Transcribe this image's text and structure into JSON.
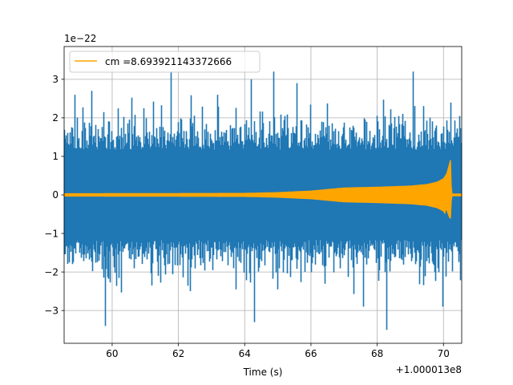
{
  "chart_data": {
    "type": "line",
    "title": "",
    "xlabel": "Time (s)",
    "ylabel": "",
    "x_offset_label": "+1.000013e8",
    "y_scale_label": "1e−22",
    "xlim": [
      58.55,
      70.55
    ],
    "ylim": [
      -3.85,
      3.85
    ],
    "xticks": [
      60,
      62,
      64,
      66,
      68,
      70
    ],
    "xtick_labels": [
      "60",
      "62",
      "64",
      "66",
      "68",
      "70"
    ],
    "yticks": [
      -3,
      -2,
      -1,
      0,
      1,
      2,
      3
    ],
    "ytick_labels": [
      "−3",
      "−2",
      "−1",
      "0",
      "1",
      "2",
      "3"
    ],
    "grid": true,
    "legend": {
      "location": "upper left",
      "entries": [
        "cm =8.693921143372666"
      ]
    },
    "series": [
      {
        "name": "",
        "color": "#1f77b4",
        "description_values": {
          "kind": "noise",
          "typical_band": [
            -1.3,
            1.3
          ],
          "peak_max": 3.3,
          "peak_min": -3.5,
          "peaks": [
            {
              "x": 58.9,
              "y": 2.6
            },
            {
              "x": 59.4,
              "y": 2.7
            },
            {
              "x": 59.8,
              "y": -3.4
            },
            {
              "x": 61.8,
              "y": 3.2
            },
            {
              "x": 63.2,
              "y": 2.6
            },
            {
              "x": 64.2,
              "y": 3.0
            },
            {
              "x": 64.3,
              "y": -3.3
            },
            {
              "x": 64.9,
              "y": 3.2
            },
            {
              "x": 65.6,
              "y": 2.9
            },
            {
              "x": 67.6,
              "y": -2.9
            },
            {
              "x": 68.3,
              "y": -3.5
            },
            {
              "x": 69.1,
              "y": 3.2
            },
            {
              "x": 70.0,
              "y": -2.9
            }
          ]
        }
      },
      {
        "name": "cm =8.693921143372666",
        "color": "#ffa500",
        "description_values": {
          "kind": "chirp",
          "envelope": [
            {
              "x": 58.55,
              "y": 0.03
            },
            {
              "x": 64.0,
              "y": 0.04
            },
            {
              "x": 65.0,
              "y": 0.06
            },
            {
              "x": 65.5,
              "y": 0.08
            },
            {
              "x": 66.0,
              "y": 0.1
            },
            {
              "x": 66.5,
              "y": 0.14
            },
            {
              "x": 67.0,
              "y": 0.18
            },
            {
              "x": 68.0,
              "y": 0.2
            },
            {
              "x": 69.0,
              "y": 0.23
            },
            {
              "x": 69.5,
              "y": 0.27
            },
            {
              "x": 69.8,
              "y": 0.33
            },
            {
              "x": 70.0,
              "y": 0.42
            },
            {
              "x": 70.1,
              "y": 0.55
            },
            {
              "x": 70.18,
              "y": 0.8
            },
            {
              "x": 70.22,
              "y": 0.93
            },
            {
              "x": 70.24,
              "y": 0.0
            },
            {
              "x": 70.55,
              "y": 0.0
            }
          ],
          "peak_max": 0.93,
          "peak_min": -0.6
        }
      }
    ]
  }
}
